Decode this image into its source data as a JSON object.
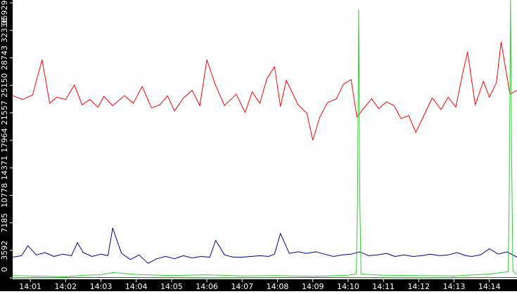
{
  "chart_data": {
    "type": "line",
    "title": "",
    "xlabel": "",
    "ylabel": "",
    "ylim": [
      0,
      35929
    ],
    "yticks": [
      "0",
      "3592",
      "7185",
      "10778",
      "14371",
      "17964",
      "21557",
      "25150",
      "28743",
      "32336",
      "35929"
    ],
    "xlim": [
      "14:00:30",
      "14:14:47"
    ],
    "xticks": [
      "14:01",
      "14:02",
      "14:03",
      "14:04",
      "14:05",
      "14:06",
      "14:07",
      "14:08",
      "14:09",
      "14:10",
      "14:11",
      "14:12",
      "14:13",
      "14:14"
    ],
    "grid": false,
    "colors": {
      "background": "#ffffff",
      "axis": "#000000",
      "axis_text": "#ffffff"
    },
    "series": [
      {
        "color": "#ff0000",
        "x": [
          "14:00:30",
          "14:00:47",
          "14:01:04",
          "14:01:20",
          "14:01:33",
          "14:01:45",
          "14:02:00",
          "14:02:15",
          "14:02:28",
          "14:02:41",
          "14:02:55",
          "14:03:05",
          "14:03:20",
          "14:03:40",
          "14:03:55",
          "14:04:10",
          "14:04:26",
          "14:04:40",
          "14:04:53",
          "14:05:05",
          "14:05:20",
          "14:05:35",
          "14:05:48",
          "14:06:00",
          "14:06:14",
          "14:06:30",
          "14:06:50",
          "14:07:05",
          "14:07:17",
          "14:07:30",
          "14:07:42",
          "14:07:55",
          "14:08:05",
          "14:08:15",
          "14:08:35",
          "14:08:50",
          "14:09:00",
          "14:09:12",
          "14:09:25",
          "14:09:40",
          "14:09:52",
          "14:10:05",
          "14:10:15",
          "14:10:26",
          "14:10:40",
          "14:10:52",
          "14:11:05",
          "14:11:18",
          "14:11:30",
          "14:11:43",
          "14:11:55",
          "14:12:10",
          "14:12:23",
          "14:12:38",
          "14:12:50",
          "14:13:03",
          "14:13:14",
          "14:13:23",
          "14:13:36",
          "14:13:50",
          "14:14:00",
          "14:14:12",
          "14:14:20",
          "14:14:35",
          "14:14:47"
        ],
        "values": [
          23800,
          23300,
          23900,
          28500,
          22800,
          23600,
          23300,
          25200,
          22600,
          23300,
          22300,
          23700,
          22500,
          23800,
          22800,
          25000,
          22200,
          22600,
          23800,
          21800,
          23500,
          24500,
          22500,
          28500,
          25300,
          22500,
          24000,
          21600,
          24300,
          22800,
          26000,
          27600,
          22400,
          25800,
          22600,
          21500,
          18000,
          21000,
          22900,
          23400,
          25300,
          25900,
          21000,
          22100,
          23400,
          22100,
          23000,
          22500,
          20800,
          21200,
          19000,
          21400,
          23500,
          22000,
          23600,
          22300,
          26500,
          29500,
          22600,
          25700,
          23600,
          25500,
          30800,
          24000,
          24500
        ]
      },
      {
        "color": "#00008b",
        "x": [
          "14:00:30",
          "14:00:45",
          "14:00:56",
          "14:01:10",
          "14:01:25",
          "14:01:40",
          "14:01:55",
          "14:02:10",
          "14:02:20",
          "14:02:30",
          "14:02:45",
          "14:03:00",
          "14:03:12",
          "14:03:20",
          "14:03:35",
          "14:03:50",
          "14:04:05",
          "14:04:20",
          "14:04:35",
          "14:04:50",
          "14:05:05",
          "14:05:20",
          "14:05:35",
          "14:05:50",
          "14:06:05",
          "14:06:15",
          "14:06:30",
          "14:06:45",
          "14:07:00",
          "14:07:15",
          "14:07:30",
          "14:07:45",
          "14:07:55",
          "14:08:05",
          "14:08:20",
          "14:08:35",
          "14:08:50",
          "14:09:05",
          "14:09:20",
          "14:09:35",
          "14:09:50",
          "14:10:05",
          "14:10:20",
          "14:10:35",
          "14:10:50",
          "14:11:05",
          "14:11:20",
          "14:11:35",
          "14:11:50",
          "14:12:05",
          "14:12:20",
          "14:12:35",
          "14:12:50",
          "14:13:05",
          "14:13:20",
          "14:13:30",
          "14:13:45",
          "14:14:00",
          "14:14:15",
          "14:14:30",
          "14:14:47"
        ],
        "values": [
          2700,
          2900,
          4200,
          3000,
          3300,
          2800,
          3100,
          2900,
          4600,
          3300,
          2800,
          3100,
          2900,
          6500,
          3200,
          2400,
          3000,
          1900,
          2500,
          2800,
          2500,
          2900,
          2600,
          2800,
          2700,
          4900,
          3000,
          2700,
          2700,
          2800,
          2900,
          2800,
          3100,
          5800,
          3200,
          3400,
          3200,
          3400,
          3100,
          2800,
          3000,
          3100,
          3400,
          2900,
          3000,
          3200,
          2800,
          3000,
          2800,
          2900,
          3100,
          2900,
          3000,
          3300,
          2900,
          2800,
          3000,
          3800,
          3100,
          3400,
          2700
        ]
      },
      {
        "color": "#32cd32",
        "x": [
          "14:00:30",
          "14:01:00",
          "14:02:00",
          "14:02:30",
          "14:03:00",
          "14:03:20",
          "14:04:00",
          "14:05:00",
          "14:06:00",
          "14:07:00",
          "14:08:00",
          "14:09:00",
          "14:10:00",
          "14:10:14",
          "14:10:16",
          "14:10:18",
          "14:10:20",
          "14:10:22",
          "14:11:00",
          "14:12:00",
          "14:13:00",
          "14:14:00",
          "14:14:32",
          "14:14:34",
          "14:14:36",
          "14:14:38",
          "14:14:40",
          "14:14:47"
        ],
        "values": [
          300,
          250,
          150,
          350,
          400,
          700,
          450,
          300,
          400,
          250,
          300,
          200,
          350,
          500,
          10000,
          35000,
          10000,
          500,
          350,
          300,
          250,
          500,
          800,
          12000,
          36500,
          15000,
          900,
          400
        ]
      },
      {
        "color": "#006400",
        "x": [
          "14:00:30",
          "14:03:00",
          "14:06:00",
          "14:09:00",
          "14:12:00",
          "14:14:47"
        ],
        "values": [
          0,
          50,
          0,
          50,
          0,
          50
        ]
      }
    ]
  }
}
